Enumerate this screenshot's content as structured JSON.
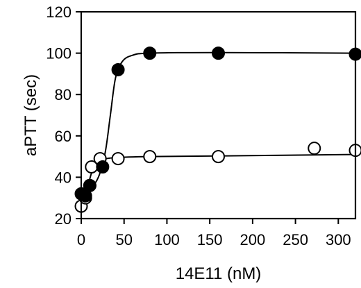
{
  "chart_data": {
    "type": "scatter",
    "title": "",
    "xlabel": "14E11 (nM)",
    "ylabel": "aPTT (sec)",
    "xlim": [
      0,
      320
    ],
    "ylim": [
      20,
      120
    ],
    "xticks": [
      0,
      50,
      100,
      150,
      200,
      250,
      300
    ],
    "yticks": [
      20,
      40,
      60,
      80,
      100,
      120
    ],
    "grid": false,
    "legend": "none",
    "series": [
      {
        "marker": "filled-circle",
        "color": "#000000",
        "points": [
          [
            0,
            32
          ],
          [
            5,
            31
          ],
          [
            10,
            36
          ],
          [
            25,
            45
          ],
          [
            43,
            92
          ],
          [
            80,
            100
          ],
          [
            160,
            100
          ],
          [
            320,
            99.5
          ]
        ],
        "fit_curve": [
          [
            0,
            30
          ],
          [
            10,
            34
          ],
          [
            20,
            40
          ],
          [
            28,
            52
          ],
          [
            34,
            70
          ],
          [
            40,
            88
          ],
          [
            48,
            96
          ],
          [
            60,
            99
          ],
          [
            80,
            100
          ],
          [
            160,
            100.3
          ],
          [
            320,
            100
          ]
        ]
      },
      {
        "marker": "open-circle",
        "color": "#ffffff",
        "points": [
          [
            0,
            26
          ],
          [
            5,
            30
          ],
          [
            10,
            36
          ],
          [
            12,
            45
          ],
          [
            22,
            49
          ],
          [
            43,
            49
          ],
          [
            80,
            50
          ],
          [
            160,
            50
          ],
          [
            272,
            54
          ],
          [
            320,
            53
          ]
        ],
        "fit_curve": [
          [
            0,
            26
          ],
          [
            6,
            33
          ],
          [
            12,
            42
          ],
          [
            18,
            46.5
          ],
          [
            25,
            48.5
          ],
          [
            40,
            49.5
          ],
          [
            80,
            50
          ],
          [
            160,
            50.3
          ],
          [
            320,
            51
          ]
        ]
      }
    ]
  }
}
